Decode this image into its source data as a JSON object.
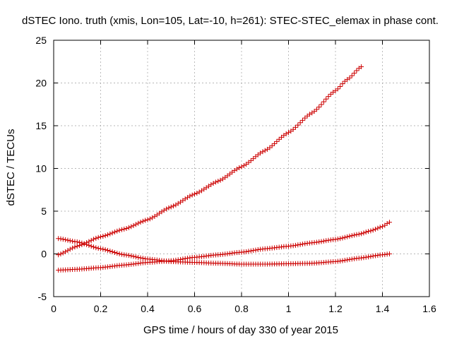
{
  "chart_data": {
    "type": "scatter",
    "title": "dSTEC Iono. truth (xmis, Lon=105, Lat=-10, h=261): STEC-STEC_elemax in phase cont.",
    "xlabel": "GPS time / hours of day 330 of year 2015",
    "ylabel": "dSTEC  / TECUs",
    "xlim": [
      0,
      1.6
    ],
    "ylim": [
      -5,
      25
    ],
    "x_ticks": [
      "0",
      "0.2",
      "0.4",
      "0.6",
      "0.8",
      "1",
      "1.2",
      "1.4",
      "1.6"
    ],
    "y_ticks": [
      "-5",
      "0",
      "5",
      "10",
      "15",
      "20",
      "25"
    ],
    "grid": true,
    "marker": "+",
    "marker_color": "#cc0000",
    "series": [
      {
        "x": [
          0.02,
          0.1,
          0.2,
          0.3,
          0.4,
          0.5,
          0.6,
          0.7,
          0.8,
          0.9,
          1.0,
          1.1,
          1.2,
          1.25,
          1.31
        ],
        "y": [
          -0.1,
          0.9,
          2.0,
          2.9,
          4.0,
          5.5,
          7.0,
          8.5,
          10.2,
          12.1,
          14.2,
          16.5,
          19.1,
          20.4,
          21.9
        ]
      },
      {
        "x": [
          0.02,
          0.1,
          0.2,
          0.3,
          0.4,
          0.5,
          0.6,
          0.7,
          0.8,
          0.9,
          1.0,
          1.1,
          1.2,
          1.3,
          1.35,
          1.4,
          1.43
        ],
        "y": [
          -1.9,
          -1.8,
          -1.6,
          -1.3,
          -1.0,
          -0.8,
          -0.4,
          -0.1,
          0.2,
          0.6,
          0.9,
          1.3,
          1.7,
          2.3,
          2.7,
          3.2,
          3.7
        ]
      },
      {
        "x": [
          0.02,
          0.1,
          0.2,
          0.3,
          0.4,
          0.5,
          0.6,
          0.7,
          0.8,
          0.9,
          1.0,
          1.1,
          1.2,
          1.3,
          1.4,
          1.43
        ],
        "y": [
          1.8,
          1.4,
          0.6,
          -0.1,
          -0.6,
          -0.9,
          -1.0,
          -1.1,
          -1.2,
          -1.2,
          -1.15,
          -1.1,
          -0.9,
          -0.5,
          -0.1,
          0.0
        ]
      }
    ]
  }
}
